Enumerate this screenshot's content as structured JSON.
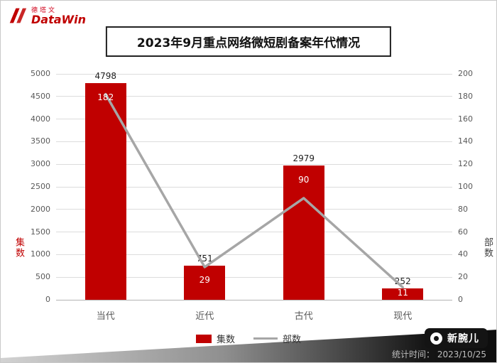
{
  "brand": {
    "cn": "德塔文",
    "en": "DataWin"
  },
  "title": "2023年9月重点网络微短剧备案年代情况",
  "chart_data": {
    "type": "bar",
    "subtype": "bar+line combo, dual axis",
    "categories": [
      "当代",
      "近代",
      "古代",
      "现代"
    ],
    "series": [
      {
        "name": "集数",
        "render": "bar",
        "axis": "left",
        "color": "#c00000",
        "values": [
          4798,
          751,
          2979,
          252
        ]
      },
      {
        "name": "部数",
        "render": "line",
        "axis": "right",
        "color": "#a6a6a6",
        "values": [
          182,
          29,
          90,
          11
        ]
      }
    ],
    "left_axis": {
      "label": "集数",
      "min": 0,
      "max": 5000,
      "step": 500
    },
    "right_axis": {
      "label": "部数",
      "min": 0,
      "max": 200,
      "step": 20
    },
    "grid": true,
    "legend_position": "bottom",
    "title": "2023年9月重点网络微短剧备案年代情况"
  },
  "footer": {
    "timestamp": "统计时间： 2023/10/25",
    "badge": "新腕儿"
  }
}
